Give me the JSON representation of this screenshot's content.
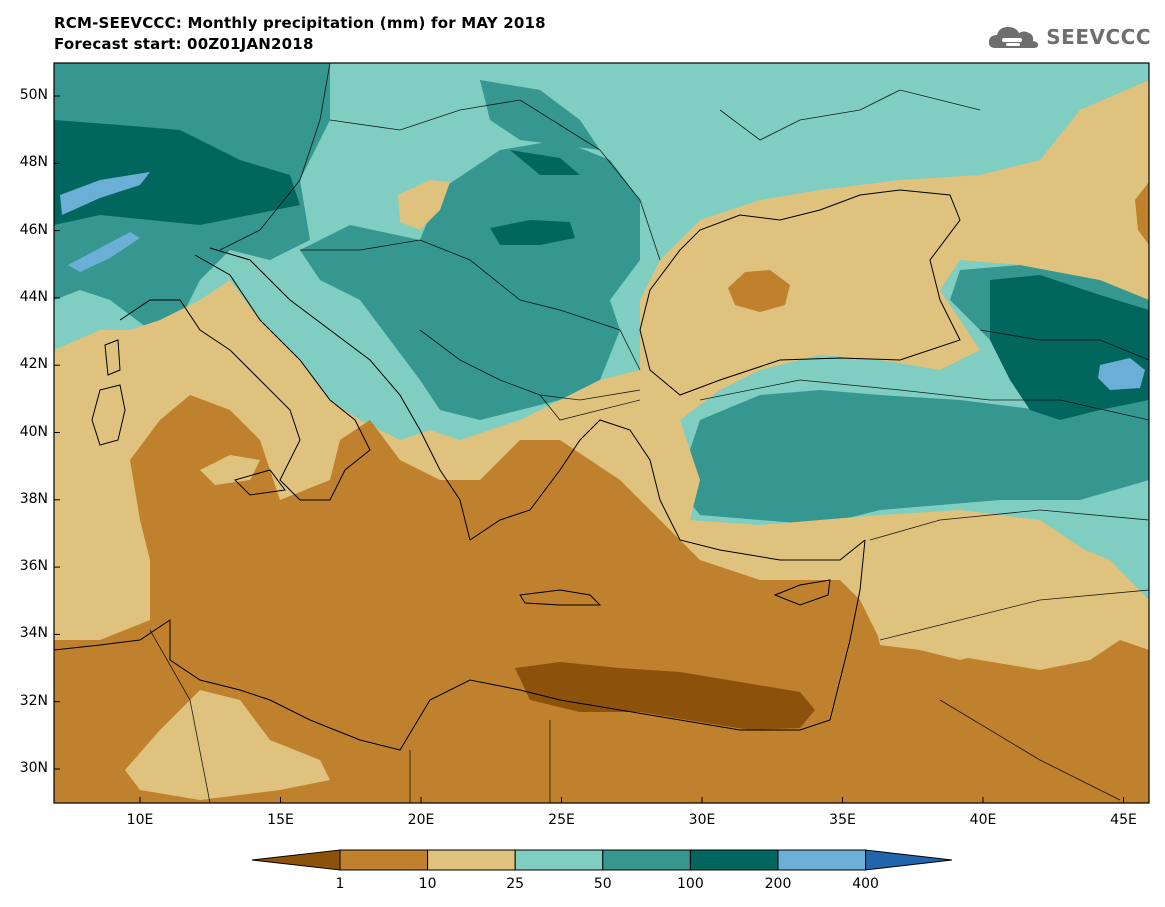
{
  "title_line1": "RCM-SEEVCCC: Monthly precipitation (mm) for MAY 2018",
  "title_line2": "Forecast start: 00Z01JAN2018",
  "logo": {
    "text": "SEEVCCC",
    "icon": "cloud-logo-icon"
  },
  "lat_labels": [
    "50N",
    "48N",
    "46N",
    "44N",
    "42N",
    "40N",
    "38N",
    "36N",
    "34N",
    "32N",
    "30N"
  ],
  "lon_labels": [
    "10E",
    "15E",
    "20E",
    "25E",
    "30E",
    "35E",
    "40E",
    "45E"
  ],
  "legend": {
    "thresholds": [
      "1",
      "10",
      "25",
      "50",
      "100",
      "200",
      "400"
    ],
    "colors": [
      "#8c510a",
      "#bf812d",
      "#dfc27d",
      "#80cdc1",
      "#35978f",
      "#01665e",
      "#6baed6",
      "#2166ac"
    ]
  }
}
